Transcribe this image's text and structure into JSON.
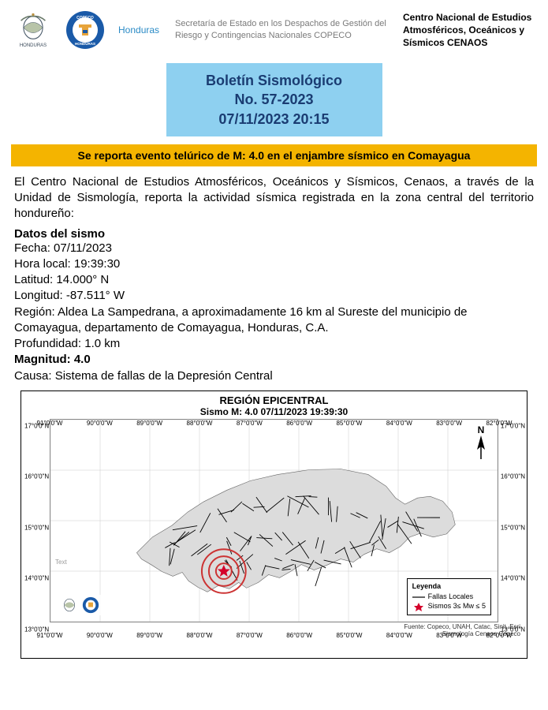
{
  "header": {
    "country": "Honduras",
    "department": "Secretaría de Estado en los Despachos de Gestión del Riesgo y Contingencias Nacionales COPECO",
    "center": "Centro Nacional de Estudios Atmosféricos, Oceánicos y Sísmicos CENAOS",
    "hn_label": "HONDURAS",
    "copeco_label": "COPECO"
  },
  "bulletin": {
    "line1": "Boletín Sismológico",
    "line2": "No. 57-2023",
    "line3": "07/11/2023 20:15"
  },
  "alert": "Se reporta evento telúrico de M: 4.0 en el enjambre sísmico en Comayagua",
  "intro": "El Centro Nacional de Estudios Atmosféricos, Oceánicos y Sísmicos, Cenaos, a través de la Unidad de Sismología, reporta la actividad sísmica registrada en la zona central del territorio hondureño:",
  "data_title": "Datos del sismo",
  "quake": {
    "fecha_label": "Fecha:",
    "fecha": "07/11/2023",
    "hora_label": "Hora local:",
    "hora": "19:39:30",
    "lat_label": "Latitud:",
    "lat": "14.000° N",
    "lon_label": "Longitud:",
    "lon": "-87.511° W",
    "region_label": "Región:",
    "region": "Aldea La Sampedrana, a aproximadamente 16 km al Sureste del municipio de Comayagua, departamento de Comayagua, Honduras, C.A.",
    "prof_label": "Profundidad:",
    "prof": "1.0 km",
    "mag_label": "Magnitud:",
    "mag": "4.0",
    "causa_label": "Causa:",
    "causa": "Sistema de fallas de la Depresión Central"
  },
  "map": {
    "title": "REGIÓN EPICENTRAL",
    "subtitle": "Sismo M: 4.0   07/11/2023   19:39:30",
    "north": "N",
    "x_ticks": [
      "91°0'0\"W",
      "90°0'0\"W",
      "89°0'0\"W",
      "88°0'0\"W",
      "87°0'0\"W",
      "86°0'0\"W",
      "85°0'0\"W",
      "84°0'0\"W",
      "83°0'0\"W",
      "82°0'0\"W"
    ],
    "y_ticks": [
      "17°0'0\"N",
      "16°0'0\"N",
      "15°0'0\"N",
      "14°0'0\"N",
      "13°0'0\"N"
    ],
    "xlim": [
      -91,
      -82
    ],
    "ylim": [
      13,
      17
    ],
    "epicenter": {
      "lon": -87.511,
      "lat": 14.0
    },
    "country_fill": "#dcdcdc",
    "sea_color": "#ffffff",
    "fault_color": "#000000",
    "ring_color": "#cc3333",
    "star_color": "#d4002a",
    "legend": {
      "title": "Leyenda",
      "faults": "Fallas Locales",
      "quakes": "Sismos  3≤ Mw ≤ 5"
    },
    "source1": "Fuente: Copeco, UNAH, Catac, Sinit, Esri",
    "source2": "Sismología Cenaos Copeco",
    "text_label": "Text"
  }
}
